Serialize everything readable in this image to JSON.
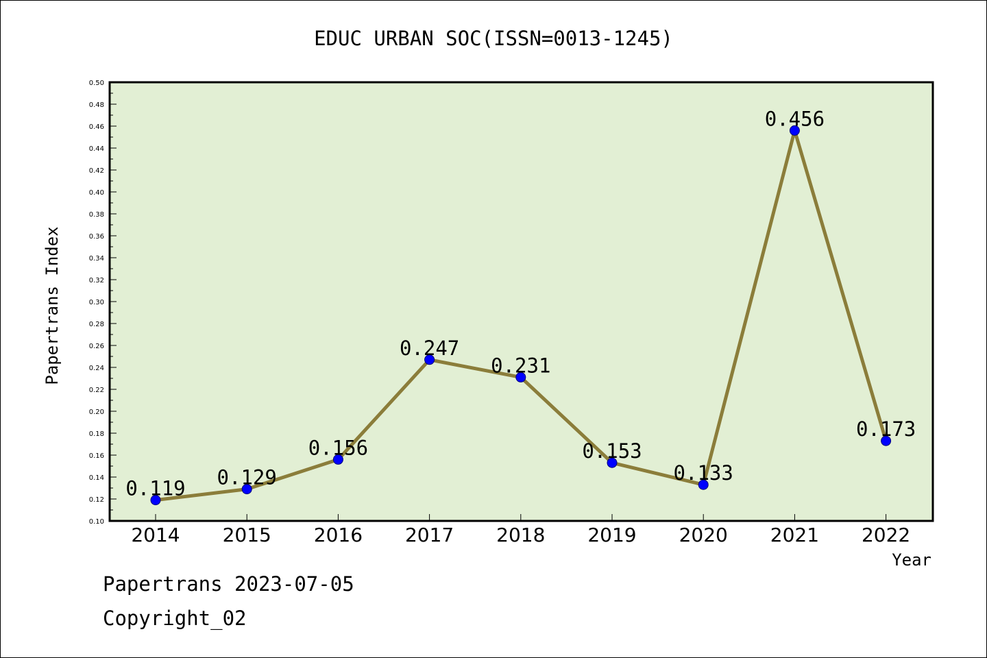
{
  "chart_data": {
    "type": "line",
    "title": "EDUC URBAN SOC(ISSN=0013-1245)",
    "xlabel": "Year",
    "ylabel": "Papertrans Index",
    "categories": [
      "2014",
      "2015",
      "2016",
      "2017",
      "2018",
      "2019",
      "2020",
      "2021",
      "2022"
    ],
    "series": [
      {
        "values": [
          0.119,
          0.129,
          0.156,
          0.247,
          0.231,
          0.153,
          0.133,
          0.456,
          0.173
        ],
        "labels": [
          "0.119",
          "0.129",
          "0.156",
          "0.247",
          "0.231",
          "0.153",
          "0.133",
          "0.456",
          "0.173"
        ]
      }
    ],
    "ylim": [
      0.1,
      0.5
    ],
    "yticks": [
      "0.10",
      "0.12",
      "0.14",
      "0.16",
      "0.18",
      "0.20",
      "0.22",
      "0.24",
      "0.26",
      "0.28",
      "0.30",
      "0.32",
      "0.34",
      "0.36",
      "0.38",
      "0.40",
      "0.42",
      "0.44",
      "0.46",
      "0.48",
      "0.50"
    ],
    "grid": false,
    "colors": {
      "plot_background": "#e2efd4",
      "line": "#8b7d3a",
      "marker_fill": "#0000ff",
      "marker_edge": "#00007a"
    }
  },
  "footer": {
    "line1": "Papertrans 2023-07-05",
    "line2": "Copyright_02"
  }
}
